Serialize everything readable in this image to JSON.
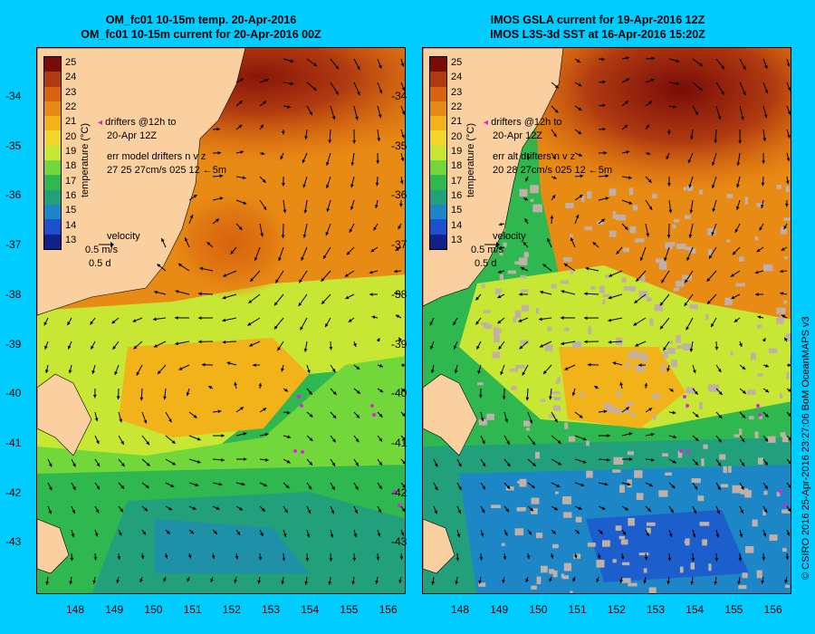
{
  "left_title": [
    "OM_fc01 10-15m temp. 20-Apr-2016",
    "OM_fc01 10-15m current for 20-Apr-2016 00Z"
  ],
  "right_title": [
    "IMOS GSLA current for 19-Apr-2016 12Z",
    "IMOS L3S-3d SST at 16-Apr-2016 15:20Z"
  ],
  "lat_ticks": [
    "-34",
    "-35",
    "-36",
    "-37",
    "-38",
    "-39",
    "-40",
    "-41",
    "-42",
    "-43"
  ],
  "lon_ticks": [
    "148",
    "149",
    "150",
    "151",
    "152",
    "153",
    "154",
    "155",
    "156"
  ],
  "colorbar": {
    "labels": [
      "25",
      "24",
      "23",
      "22",
      "21",
      "20",
      "19",
      "18",
      "17",
      "16",
      "15",
      "14",
      "13"
    ],
    "axis_label": "temperature (°C)",
    "colors": [
      "#7a0c08",
      "#b03a10",
      "#d8620f",
      "#e88b14",
      "#f2b21a",
      "#f1d62c",
      "#c7e734",
      "#72d73a",
      "#2eb84f",
      "#22a07c",
      "#1d86c7",
      "#1d4fcf",
      "#12208a"
    ]
  },
  "left_legend": {
    "drifters_line1": "drifters @12h to",
    "drifters_line2": "20-Apr 12Z",
    "err_line1": "err model drifters n v z",
    "err_line2": "27 25 27cm/s 025 12 ←5m",
    "velocity": "velocity",
    "vel_scale": "0.5 m/s",
    "vel_days": "0.5 d"
  },
  "right_legend": {
    "drifters_line1": "drifters @12h to",
    "drifters_line2": "20-Apr 12Z",
    "err_line1": "err alt drifters n v z",
    "err_line2": "20 28 27cm/s 025 12 ←5m",
    "velocity": "velocity",
    "vel_scale": "0.5 m/s",
    "vel_days": "0.5 d"
  },
  "credit": "© CSIRO 2016   25-Apr-2016 23:27:06 BoM OceanMAPS v3",
  "colors": {
    "background": "#00ccff",
    "land": "#fbd0a0",
    "drifter": "#e020e0",
    "missing": "#c0b0a8"
  }
}
